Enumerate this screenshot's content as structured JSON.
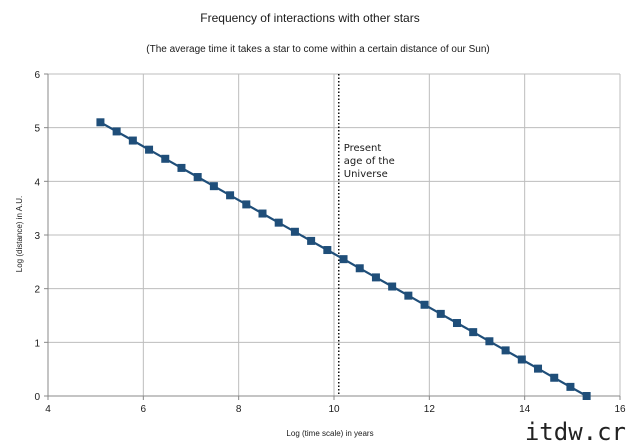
{
  "chart_data": {
    "type": "line",
    "title": "Frequency of interactions with other stars",
    "subtitle": "(The average time it takes a star to come within a certain distance of our Sun)",
    "xlabel": "Log (time scale) in years",
    "ylabel": "Log (distance) in A.U.",
    "xlim": [
      4,
      16
    ],
    "ylim": [
      0,
      6
    ],
    "xticks": [
      "4",
      "6",
      "8",
      "10",
      "12",
      "14",
      "16"
    ],
    "yticks": [
      "0",
      "1",
      "2",
      "3",
      "4",
      "5",
      "6"
    ],
    "grid": true,
    "legend": "none",
    "series": [
      {
        "color": "#1f4e79",
        "marker": "square",
        "x": [
          5.1,
          5.44,
          5.78,
          6.12,
          6.46,
          6.8,
          7.14,
          7.48,
          7.82,
          8.16,
          8.5,
          8.84,
          9.18,
          9.52,
          9.86,
          10.2,
          10.54,
          10.88,
          11.22,
          11.56,
          11.9,
          12.24,
          12.58,
          12.92,
          13.26,
          13.6,
          13.94,
          14.28,
          14.62,
          14.96,
          15.3
        ],
        "values": [
          5.1,
          4.93,
          4.76,
          4.59,
          4.42,
          4.25,
          4.08,
          3.91,
          3.74,
          3.57,
          3.4,
          3.23,
          3.06,
          2.89,
          2.72,
          2.55,
          2.38,
          2.21,
          2.04,
          1.87,
          1.7,
          1.53,
          1.36,
          1.19,
          1.02,
          0.85,
          0.68,
          0.51,
          0.34,
          0.17,
          0.0
        ]
      }
    ],
    "annotation": {
      "lines": [
        "Present",
        "age of the",
        "Universe"
      ],
      "x": 10.1,
      "style": "dotted vertical line"
    }
  },
  "watermark": "itdw.cr"
}
